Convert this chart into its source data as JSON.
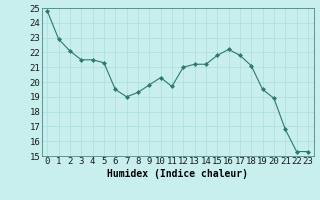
{
  "x": [
    0,
    1,
    2,
    3,
    4,
    5,
    6,
    7,
    8,
    9,
    10,
    11,
    12,
    13,
    14,
    15,
    16,
    17,
    18,
    19,
    20,
    21,
    22,
    23
  ],
  "y": [
    24.8,
    22.9,
    22.1,
    21.5,
    21.5,
    21.3,
    19.5,
    19.0,
    19.3,
    19.8,
    20.3,
    19.7,
    21.0,
    21.2,
    21.2,
    21.8,
    22.2,
    21.8,
    21.1,
    19.5,
    18.9,
    16.8,
    15.3,
    15.3
  ],
  "line_color": "#2d7a6a",
  "marker_color": "#2d7a6a",
  "bg_color": "#c8eeee",
  "grid_color": "#aadddd",
  "xlabel": "Humidex (Indice chaleur)",
  "ylim": [
    15,
    25
  ],
  "xlim": [
    -0.5,
    23.5
  ],
  "yticks": [
    15,
    16,
    17,
    18,
    19,
    20,
    21,
    22,
    23,
    24,
    25
  ],
  "xticks": [
    0,
    1,
    2,
    3,
    4,
    5,
    6,
    7,
    8,
    9,
    10,
    11,
    12,
    13,
    14,
    15,
    16,
    17,
    18,
    19,
    20,
    21,
    22,
    23
  ],
  "xlabel_fontsize": 7,
  "tick_fontsize": 6.5
}
